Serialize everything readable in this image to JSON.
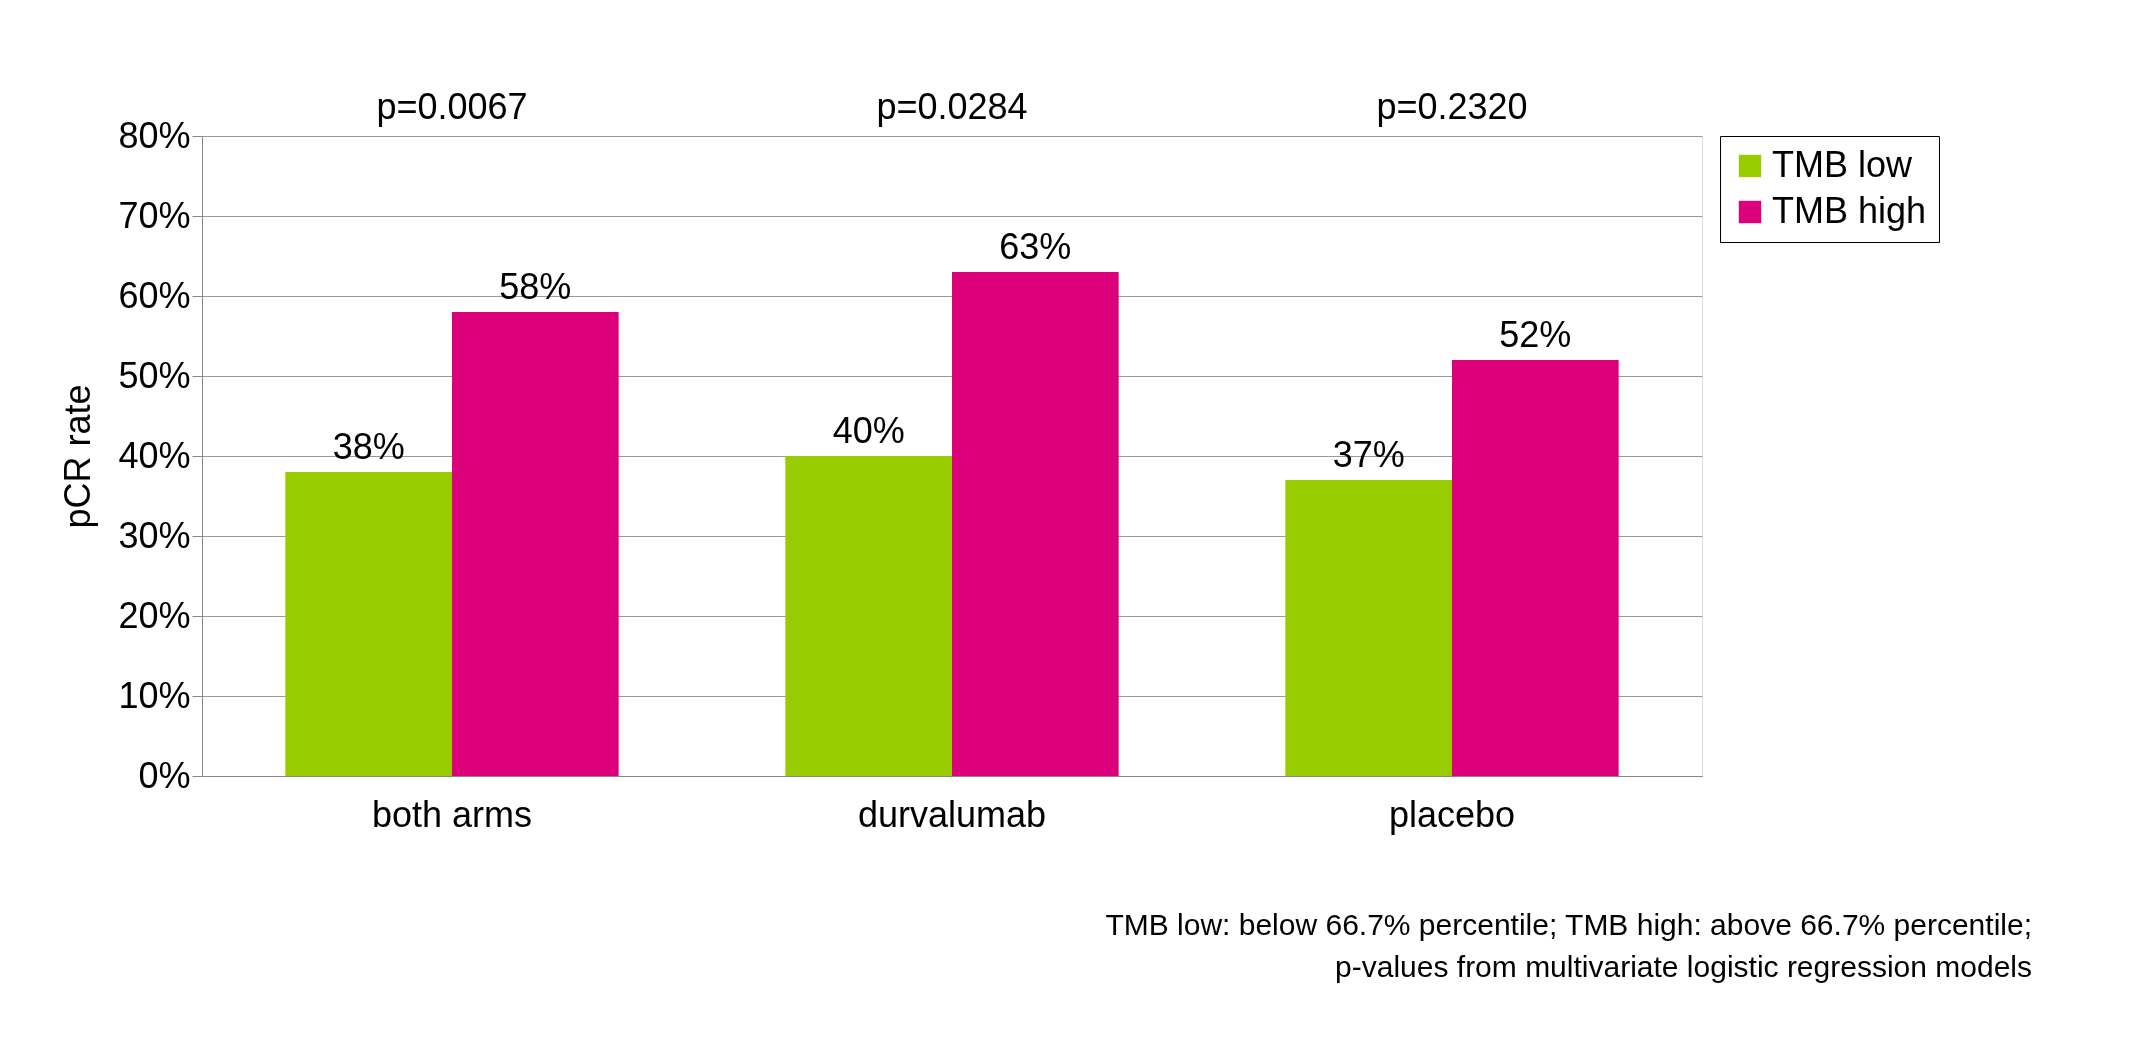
{
  "chart_data": {
    "type": "bar",
    "ylabel": "pCR rate",
    "categories": [
      "both arms",
      "durvalumab",
      "placebo"
    ],
    "series": [
      {
        "name": "TMB low",
        "color": "#99cc00",
        "values": [
          38,
          40,
          37
        ],
        "value_labels": [
          "38%",
          "40%",
          "37%"
        ]
      },
      {
        "name": "TMB high",
        "color": "#dc007a",
        "values": [
          58,
          63,
          52
        ],
        "value_labels": [
          "58%",
          "63%",
          "52%"
        ]
      }
    ],
    "ylim": [
      0,
      80
    ],
    "yticks": [
      {
        "value": 0,
        "label": "0%"
      },
      {
        "value": 10,
        "label": "10%"
      },
      {
        "value": 20,
        "label": "20%"
      },
      {
        "value": 30,
        "label": "30%"
      },
      {
        "value": 40,
        "label": "40%"
      },
      {
        "value": 50,
        "label": "50%"
      },
      {
        "value": 60,
        "label": "60%"
      },
      {
        "value": 70,
        "label": "70%"
      },
      {
        "value": 80,
        "label": "80%"
      }
    ],
    "grid": "y",
    "legend": "right",
    "annotations": [
      "p=0.0067",
      "p=0.0284",
      "p=0.2320",
      "TMB low: below 66.7% percentile; TMB high: above 66.7% percentile;",
      "p-values from multivariate logistic regression models"
    ]
  }
}
